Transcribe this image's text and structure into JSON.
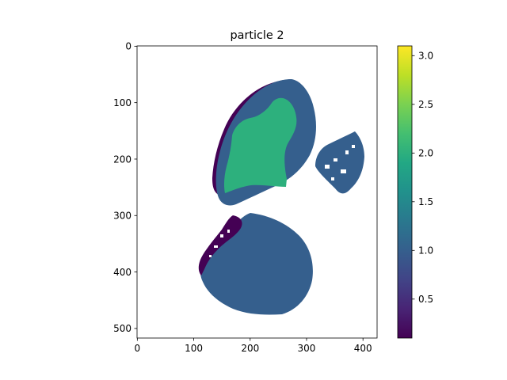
{
  "chart_data": {
    "type": "heatmap",
    "title": "particle 2",
    "xlabel": "",
    "ylabel": "",
    "x_ticks": [
      "0",
      "100",
      "200",
      "300",
      "400"
    ],
    "y_ticks": [
      "0",
      "100",
      "200",
      "300",
      "400",
      "500"
    ],
    "xlim": [
      -0.5,
      425
    ],
    "ylim": [
      517,
      -0.5
    ],
    "colorbar": {
      "colormap": "viridis",
      "range": [
        0.1,
        3.1
      ],
      "ticks": [
        "0.5",
        "1.0",
        "1.5",
        "2.0",
        "2.5",
        "3.0"
      ]
    },
    "regions": [
      {
        "value": 1.0,
        "description": "upper-left particle outer body"
      },
      {
        "value": 2.0,
        "description": "upper-left particle inner core"
      },
      {
        "value": 0.1,
        "description": "upper-left particle left rim"
      },
      {
        "value": 1.0,
        "description": "right small particle"
      },
      {
        "value": 1.0,
        "description": "lower particle body"
      },
      {
        "value": 0.1,
        "description": "lower particle upper-left edge"
      }
    ],
    "grid": false
  }
}
